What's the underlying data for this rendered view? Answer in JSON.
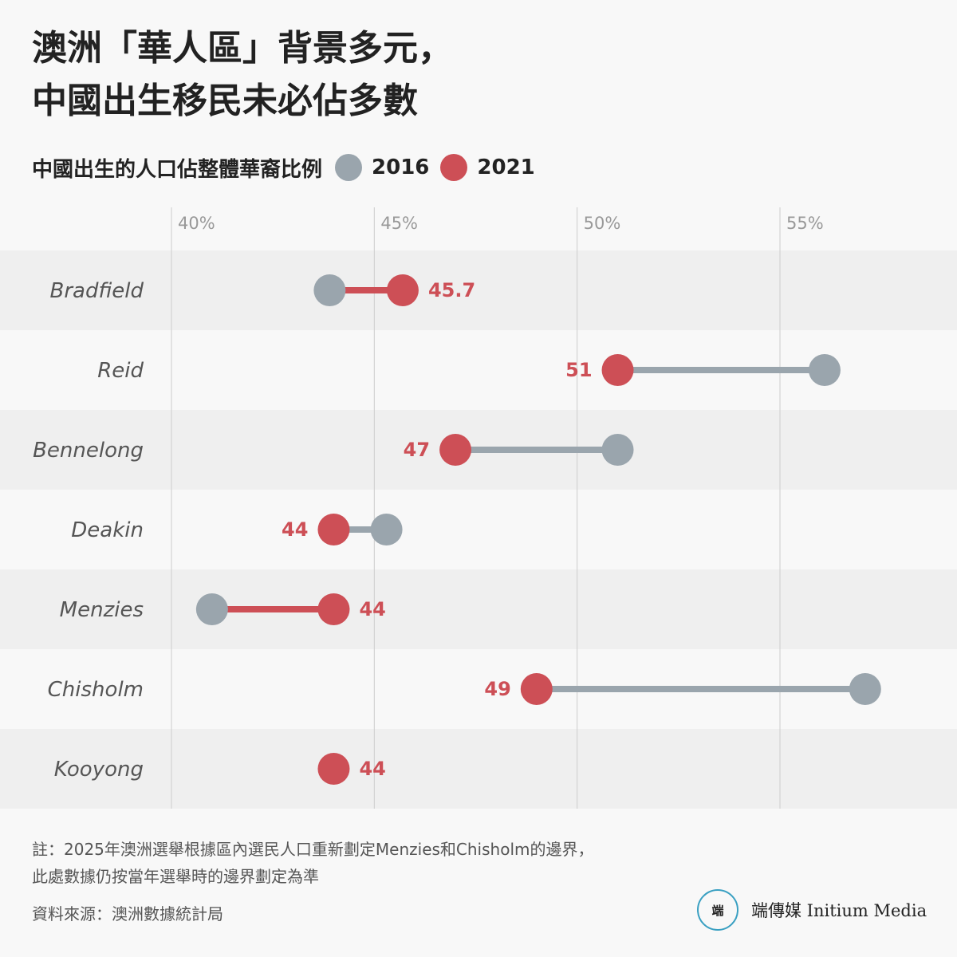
{
  "title_lines": [
    "澳洲「華人區」背景多元，",
    "中國出生移民未必佔多數"
  ],
  "legend": {
    "label": "中國出生的人口佔整體華裔比例",
    "items": [
      {
        "name": "2016",
        "color": "#9aa5ad"
      },
      {
        "name": "2021",
        "color": "#cd4f56"
      }
    ]
  },
  "colors": {
    "grey_dot": "#9aa5ad",
    "red_dot": "#cd4f56",
    "grid": "#cccccc",
    "band_dark": "#efefef",
    "band_light": "#f8f8f8"
  },
  "chart_data": {
    "type": "dumbbell",
    "xlim": [
      37,
      57
    ],
    "ticks": [
      40,
      45,
      50,
      55
    ],
    "tick_labels": [
      "40%",
      "45%",
      "50%",
      "55%"
    ],
    "series": [
      {
        "name": "2016"
      },
      {
        "name": "2021"
      }
    ],
    "categories": [
      "Bradfield",
      "Reid",
      "Bennelong",
      "Deakin",
      "Menzies",
      "Chisholm",
      "Kooyong"
    ],
    "values_2016": [
      43.9,
      56.1,
      51.0,
      45.3,
      41.0,
      57.1,
      null
    ],
    "values_2021": [
      45.7,
      51.0,
      47.0,
      44.0,
      44.0,
      49.0,
      44.0
    ],
    "labels_2021": [
      "45.7",
      "51",
      "47",
      "44",
      "44",
      "49",
      "44"
    ],
    "label_side": [
      "right",
      "left",
      "left",
      "left",
      "right",
      "left",
      "right"
    ]
  },
  "footnote_lines": [
    "註：2025年澳洲選舉根據區內選民人口重新劃定Menzies和Chisholm的邊界，",
    "此處數據仍按當年選舉時的邊界劃定為準"
  ],
  "source": "資料來源：澳洲數據統計局",
  "brand": {
    "logo_text": "端",
    "name": "端傳媒 Initium Media"
  }
}
